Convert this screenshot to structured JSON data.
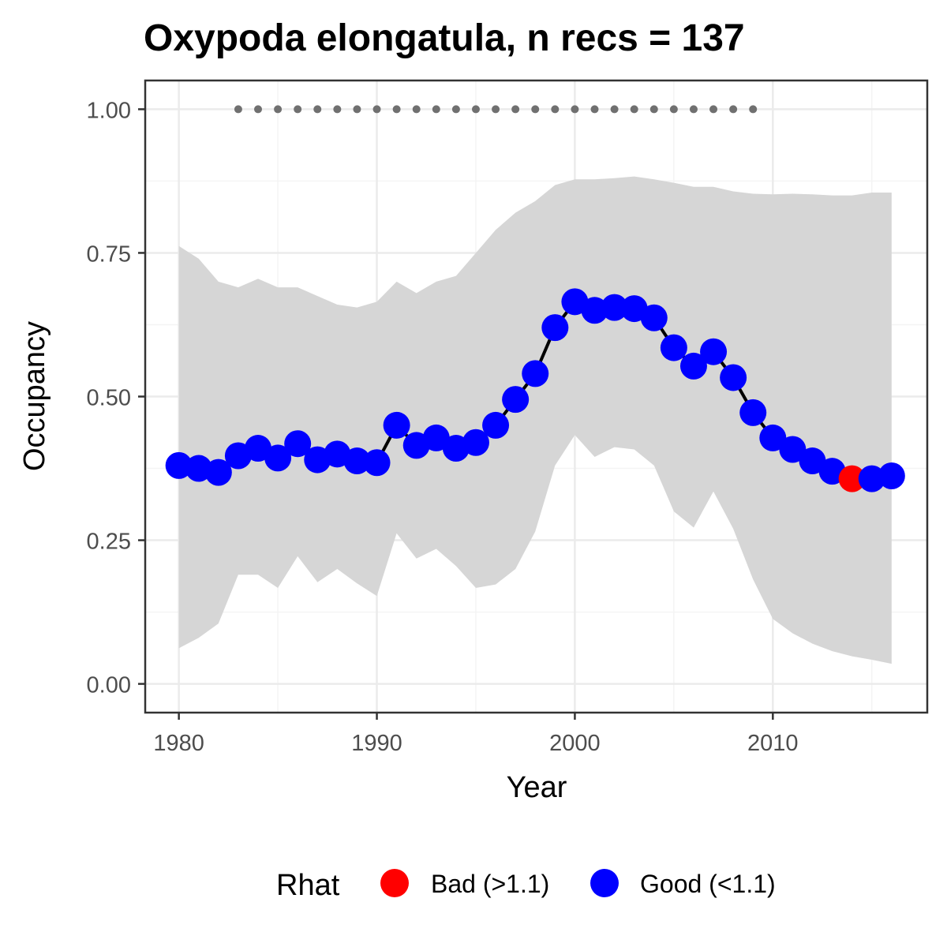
{
  "chart_data": {
    "type": "line",
    "title": "Oxypoda elongatula, n recs = 137",
    "xlabel": "Year",
    "ylabel": "Occupancy",
    "xlim": [
      1978.3,
      2017.8
    ],
    "ylim": [
      -0.05,
      1.05
    ],
    "x_ticks": [
      1980,
      1990,
      2000,
      2010
    ],
    "x_tick_labels": [
      "1980",
      "1990",
      "2000",
      "2010"
    ],
    "y_ticks": [
      0,
      0.25,
      0.5,
      0.75,
      1.0
    ],
    "y_tick_labels": [
      "0.00",
      "0.25",
      "0.50",
      "0.75",
      "1.00"
    ],
    "grid": true,
    "x": [
      1980,
      1981,
      1982,
      1983,
      1984,
      1985,
      1986,
      1987,
      1988,
      1989,
      1990,
      1991,
      1992,
      1993,
      1994,
      1995,
      1996,
      1997,
      1998,
      1999,
      2000,
      2001,
      2002,
      2003,
      2004,
      2005,
      2006,
      2007,
      2008,
      2009,
      2010,
      2011,
      2012,
      2013,
      2014,
      2015,
      2016
    ],
    "occupancy": [
      0.38,
      0.375,
      0.368,
      0.397,
      0.41,
      0.393,
      0.418,
      0.39,
      0.4,
      0.388,
      0.385,
      0.45,
      0.415,
      0.428,
      0.41,
      0.42,
      0.45,
      0.495,
      0.54,
      0.62,
      0.665,
      0.65,
      0.655,
      0.653,
      0.637,
      0.585,
      0.553,
      0.578,
      0.533,
      0.472,
      0.428,
      0.408,
      0.388,
      0.37,
      0.357,
      0.357,
      0.362
    ],
    "upper_ci": [
      0.762,
      0.74,
      0.7,
      0.69,
      0.705,
      0.69,
      0.69,
      0.675,
      0.66,
      0.655,
      0.665,
      0.7,
      0.68,
      0.7,
      0.71,
      0.75,
      0.79,
      0.82,
      0.84,
      0.868,
      0.878,
      0.878,
      0.88,
      0.883,
      0.878,
      0.872,
      0.865,
      0.865,
      0.857,
      0.853,
      0.852,
      0.853,
      0.852,
      0.85,
      0.85,
      0.855,
      0.855
    ],
    "lower_ci": [
      0.062,
      0.08,
      0.105,
      0.19,
      0.19,
      0.167,
      0.222,
      0.177,
      0.2,
      0.175,
      0.153,
      0.262,
      0.218,
      0.235,
      0.205,
      0.167,
      0.173,
      0.2,
      0.265,
      0.38,
      0.433,
      0.395,
      0.412,
      0.408,
      0.38,
      0.3,
      0.272,
      0.335,
      0.27,
      0.182,
      0.113,
      0.088,
      0.07,
      0.057,
      0.048,
      0.042,
      0.035
    ],
    "rhat": [
      "Good (<1.1)",
      "Good (<1.1)",
      "Good (<1.1)",
      "Good (<1.1)",
      "Good (<1.1)",
      "Good (<1.1)",
      "Good (<1.1)",
      "Good (<1.1)",
      "Good (<1.1)",
      "Good (<1.1)",
      "Good (<1.1)",
      "Good (<1.1)",
      "Good (<1.1)",
      "Good (<1.1)",
      "Good (<1.1)",
      "Good (<1.1)",
      "Good (<1.1)",
      "Good (<1.1)",
      "Good (<1.1)",
      "Good (<1.1)",
      "Good (<1.1)",
      "Good (<1.1)",
      "Good (<1.1)",
      "Good (<1.1)",
      "Good (<1.1)",
      "Good (<1.1)",
      "Good (<1.1)",
      "Good (<1.1)",
      "Good (<1.1)",
      "Good (<1.1)",
      "Good (<1.1)",
      "Good (<1.1)",
      "Good (<1.1)",
      "Good (<1.1)",
      "Bad (>1.1)",
      "Good (<1.1)",
      "Good (<1.1)"
    ],
    "record_years": [
      1983,
      1984,
      1985,
      1986,
      1987,
      1988,
      1989,
      1990,
      1991,
      1992,
      1993,
      1994,
      1995,
      1996,
      1997,
      1998,
      1999,
      2000,
      2001,
      2002,
      2003,
      2004,
      2005,
      2006,
      2007,
      2008,
      2009
    ],
    "record_marker_value": 1.0,
    "legend": {
      "title": "Rhat",
      "placement": "bottom",
      "entries": [
        {
          "label": "Bad (>1.1)",
          "color": "#ff0000"
        },
        {
          "label": "Good (<1.1)",
          "color": "#0000ff"
        }
      ]
    },
    "colors": {
      "ci_band": "#d6d6d6",
      "line": "#000000",
      "record_dots": "#707070",
      "grid_major": "#ebebeb",
      "grid_minor": "#f4f4f4",
      "panel_border": "#333333",
      "bad": "#ff0000",
      "good": "#0000ff"
    }
  }
}
